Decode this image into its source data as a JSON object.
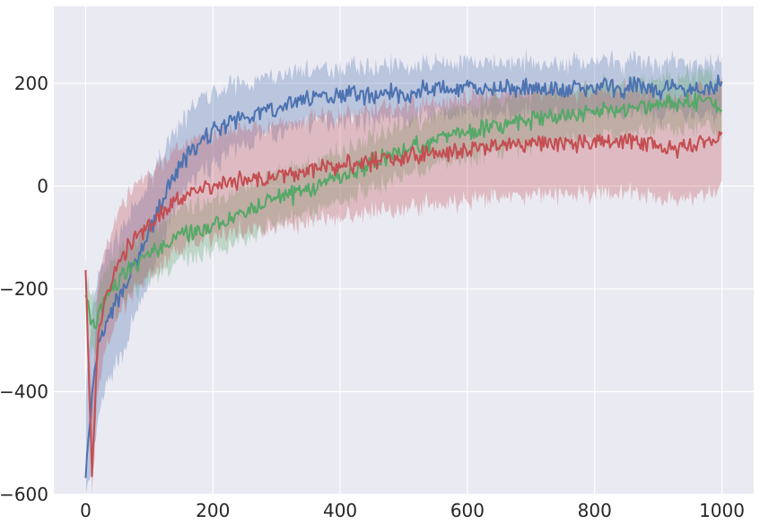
{
  "chart_data": {
    "type": "line",
    "title": "",
    "xlabel": "",
    "ylabel": "",
    "xlim": [
      -50,
      1050
    ],
    "ylim": [
      -600,
      350
    ],
    "grid": true,
    "background": "#eaeaf2",
    "grid_color": "#ffffff",
    "x_ticks": [
      0,
      200,
      400,
      600,
      800,
      1000
    ],
    "y_ticks": [
      -600,
      -400,
      -200,
      0,
      200
    ],
    "x_tick_labels": [
      "0",
      "200",
      "400",
      "600",
      "800",
      "1000"
    ],
    "y_tick_labels": [
      "−600",
      "−400",
      "−200",
      "0",
      "200"
    ],
    "x": [
      0,
      10,
      20,
      30,
      40,
      50,
      60,
      70,
      80,
      90,
      100,
      120,
      140,
      160,
      180,
      200,
      220,
      240,
      260,
      280,
      300,
      320,
      340,
      360,
      380,
      400,
      420,
      440,
      460,
      480,
      500,
      520,
      540,
      560,
      580,
      600,
      620,
      640,
      660,
      680,
      700,
      720,
      740,
      760,
      780,
      800,
      820,
      840,
      860,
      880,
      900,
      920,
      940,
      960,
      980,
      1000
    ],
    "series": [
      {
        "color": "#4c72b0",
        "band_alpha": 0.3,
        "values": [
          -560,
          -420,
          -310,
          -280,
          -250,
          -220,
          -200,
          -170,
          -150,
          -120,
          -90,
          -30,
          20,
          60,
          80,
          110,
          120,
          130,
          140,
          145,
          150,
          160,
          170,
          175,
          175,
          180,
          180,
          175,
          180,
          185,
          175,
          185,
          190,
          190,
          185,
          190,
          185,
          190,
          195,
          185,
          195,
          190,
          190,
          185,
          190,
          190,
          195,
          185,
          195,
          190,
          185,
          195,
          190,
          190,
          185,
          210
        ],
        "band_lower": [
          -600,
          -560,
          -450,
          -400,
          -370,
          -340,
          -320,
          -280,
          -250,
          -220,
          -180,
          -110,
          -50,
          0,
          20,
          40,
          60,
          75,
          85,
          95,
          100,
          110,
          120,
          125,
          125,
          130,
          130,
          125,
          130,
          135,
          125,
          135,
          140,
          140,
          135,
          140,
          135,
          140,
          145,
          135,
          145,
          140,
          140,
          135,
          140,
          140,
          145,
          135,
          145,
          140,
          135,
          145,
          140,
          140,
          135,
          150
        ],
        "band_upper": [
          -400,
          -260,
          -170,
          -140,
          -120,
          -100,
          -80,
          -55,
          -40,
          -20,
          10,
          60,
          100,
          140,
          170,
          180,
          190,
          200,
          205,
          210,
          215,
          220,
          230,
          225,
          230,
          230,
          235,
          230,
          235,
          240,
          230,
          235,
          240,
          240,
          235,
          240,
          235,
          240,
          245,
          235,
          245,
          240,
          240,
          235,
          240,
          240,
          245,
          235,
          245,
          240,
          235,
          245,
          240,
          240,
          235,
          260
        ]
      },
      {
        "color": "#55a868",
        "band_alpha": 0.3,
        "values": [
          -210,
          -270,
          -250,
          -220,
          -200,
          -190,
          -170,
          -160,
          -150,
          -140,
          -130,
          -115,
          -100,
          -95,
          -90,
          -80,
          -70,
          -55,
          -45,
          -30,
          -25,
          -20,
          -10,
          0,
          10,
          20,
          30,
          40,
          50,
          60,
          70,
          80,
          85,
          95,
          100,
          105,
          110,
          115,
          120,
          125,
          125,
          130,
          135,
          140,
          140,
          145,
          150,
          150,
          155,
          155,
          160,
          160,
          165,
          165,
          165,
          145
        ],
        "band_lower": [
          -240,
          -330,
          -300,
          -270,
          -250,
          -240,
          -220,
          -210,
          -200,
          -190,
          -180,
          -165,
          -150,
          -145,
          -140,
          -130,
          -120,
          -105,
          -95,
          -80,
          -75,
          -70,
          -60,
          -50,
          -40,
          -30,
          -20,
          -10,
          0,
          10,
          20,
          30,
          35,
          45,
          50,
          55,
          60,
          65,
          70,
          75,
          75,
          80,
          85,
          90,
          90,
          95,
          100,
          100,
          105,
          105,
          110,
          110,
          115,
          115,
          115,
          95
        ],
        "band_upper": [
          -180,
          -210,
          -200,
          -170,
          -150,
          -140,
          -120,
          -110,
          -100,
          -90,
          -80,
          -65,
          -50,
          -45,
          -40,
          -30,
          -20,
          -5,
          5,
          20,
          25,
          30,
          40,
          50,
          60,
          70,
          80,
          90,
          100,
          110,
          120,
          130,
          135,
          145,
          150,
          155,
          160,
          165,
          170,
          175,
          175,
          180,
          185,
          190,
          190,
          195,
          200,
          200,
          205,
          205,
          210,
          210,
          215,
          215,
          215,
          195
        ]
      },
      {
        "color": "#c44e52",
        "band_alpha": 0.3,
        "values": [
          -160,
          -560,
          -280,
          -220,
          -180,
          -150,
          -130,
          -110,
          -100,
          -90,
          -80,
          -55,
          -30,
          -15,
          -5,
          0,
          5,
          10,
          15,
          15,
          20,
          25,
          30,
          35,
          35,
          40,
          45,
          45,
          50,
          55,
          55,
          60,
          65,
          60,
          65,
          70,
          70,
          75,
          75,
          80,
          80,
          85,
          85,
          80,
          85,
          90,
          85,
          90,
          85,
          80,
          75,
          70,
          75,
          80,
          85,
          100
        ],
        "band_lower": [
          -200,
          -600,
          -380,
          -320,
          -280,
          -250,
          -230,
          -210,
          -200,
          -190,
          -180,
          -155,
          -130,
          -115,
          -105,
          -100,
          -95,
          -90,
          -85,
          -85,
          -80,
          -75,
          -70,
          -65,
          -65,
          -60,
          -55,
          -55,
          -50,
          -45,
          -45,
          -40,
          -35,
          -40,
          -35,
          -30,
          -30,
          -25,
          -25,
          -20,
          -20,
          -15,
          -15,
          -20,
          -15,
          -10,
          -15,
          -10,
          -15,
          -20,
          -25,
          -30,
          -25,
          -20,
          -15,
          0
        ],
        "band_upper": [
          -120,
          -420,
          -180,
          -120,
          -80,
          -50,
          -30,
          -10,
          0,
          10,
          20,
          45,
          70,
          85,
          95,
          100,
          105,
          110,
          115,
          115,
          120,
          125,
          130,
          135,
          135,
          140,
          145,
          145,
          150,
          155,
          155,
          160,
          165,
          160,
          165,
          170,
          170,
          175,
          175,
          180,
          180,
          185,
          185,
          180,
          185,
          190,
          185,
          190,
          185,
          180,
          175,
          170,
          175,
          180,
          185,
          200
        ]
      }
    ]
  }
}
